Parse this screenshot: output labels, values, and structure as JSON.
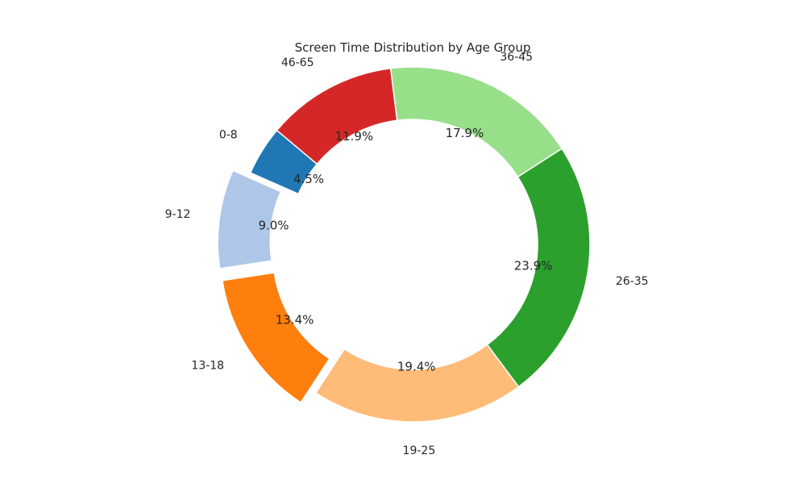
{
  "chart_data": {
    "type": "pie",
    "style": "donut",
    "title": "Screen Time Distribution by Age Group",
    "categories": [
      "0-8",
      "9-12",
      "13-18",
      "19-25",
      "26-35",
      "36-45",
      "46-65"
    ],
    "values": [
      4.5,
      9.0,
      13.4,
      19.4,
      23.9,
      17.9,
      11.9
    ],
    "value_labels": [
      "4.5%",
      "9.0%",
      "13.4%",
      "19.4%",
      "23.9%",
      "17.9%",
      "11.9%"
    ],
    "colors": [
      "#1f77b4",
      "#aec7e8",
      "#ff7f0e",
      "#ffbb78",
      "#2ca02c",
      "#98df8a",
      "#d62728"
    ],
    "exploded": [
      false,
      true,
      true,
      false,
      false,
      false,
      false
    ],
    "start_angle_deg": 140,
    "direction": "counterclockwise",
    "legend": "none"
  }
}
